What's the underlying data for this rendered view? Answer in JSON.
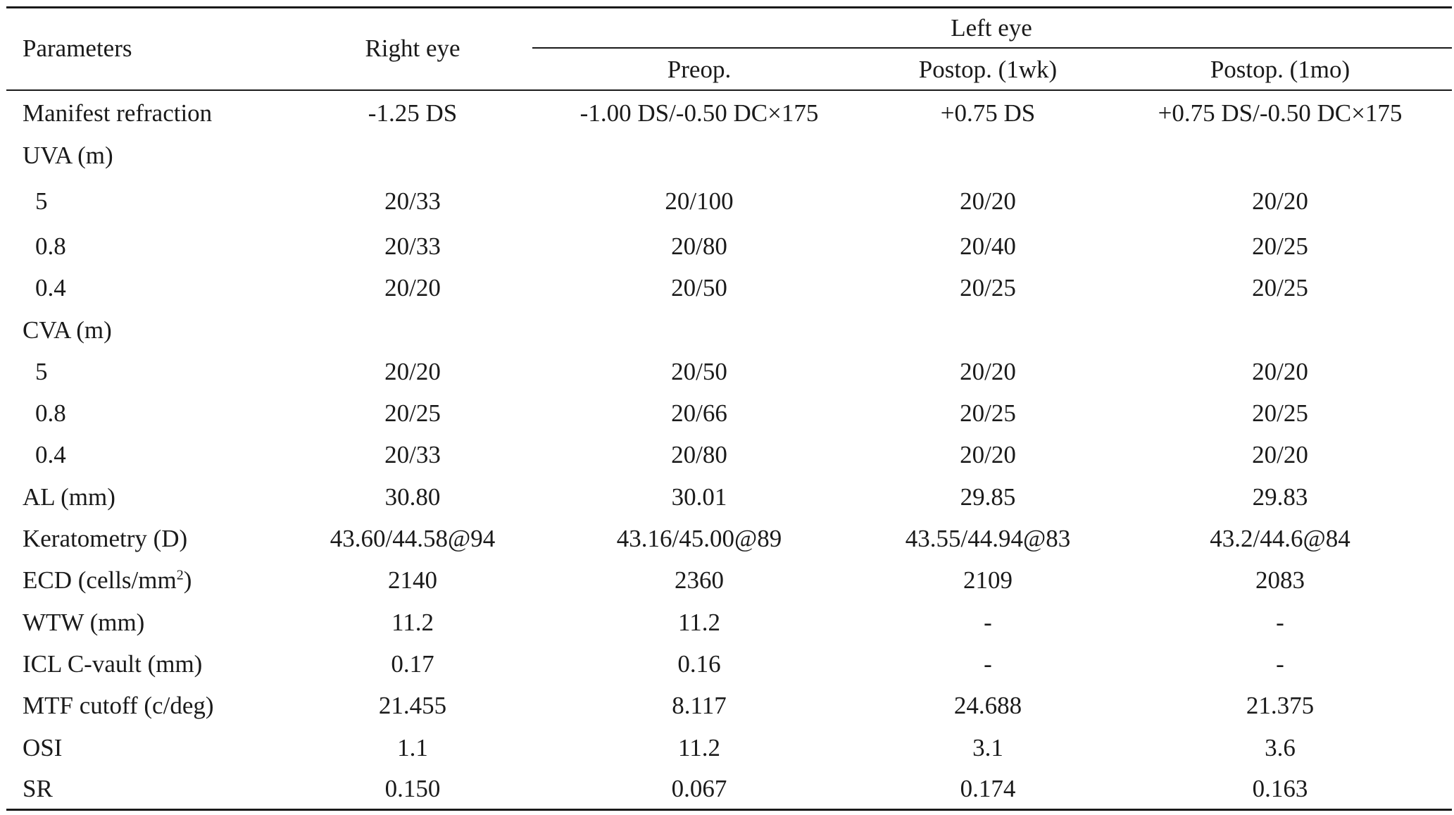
{
  "header": {
    "parameters": "Parameters",
    "right_eye": "Right eye",
    "left_eye": "Left eye",
    "preop": "Preop.",
    "postop_1wk": "Postop. (1wk)",
    "postop_1mo": "Postop. (1mo)"
  },
  "rows": [
    {
      "label": "Manifest refraction",
      "indent": false,
      "right": "-1.25 DS",
      "preop": "-1.00 DS/-0.50 DC×175",
      "wk1": "+0.75 DS",
      "mo1": "+0.75 DS/-0.50 DC×175"
    },
    {
      "label": "UVA (m)",
      "indent": false,
      "right": "",
      "preop": "",
      "wk1": "",
      "mo1": ""
    },
    {
      "label": "5",
      "indent": true,
      "right": "20/33",
      "preop": "20/100",
      "wk1": "20/20",
      "mo1": "20/20"
    },
    {
      "label": "0.8",
      "indent": true,
      "right": "20/33",
      "preop": "20/80",
      "wk1": "20/40",
      "mo1": "20/25"
    },
    {
      "label": "0.4",
      "indent": true,
      "right": "20/20",
      "preop": "20/50",
      "wk1": "20/25",
      "mo1": "20/25"
    },
    {
      "label": "CVA (m)",
      "indent": false,
      "right": "",
      "preop": "",
      "wk1": "",
      "mo1": ""
    },
    {
      "label": "5",
      "indent": true,
      "right": "20/20",
      "preop": "20/50",
      "wk1": "20/20",
      "mo1": "20/20"
    },
    {
      "label": "0.8",
      "indent": true,
      "right": "20/25",
      "preop": "20/66",
      "wk1": "20/25",
      "mo1": "20/25"
    },
    {
      "label": "0.4",
      "indent": true,
      "right": "20/33",
      "preop": "20/80",
      "wk1": "20/20",
      "mo1": "20/20"
    },
    {
      "label": "AL (mm)",
      "indent": false,
      "right": "30.80",
      "preop": "30.01",
      "wk1": "29.85",
      "mo1": "29.83"
    },
    {
      "label": "Keratometry (D)",
      "indent": false,
      "right": "43.60/44.58@94",
      "preop": "43.16/45.00@89",
      "wk1": "43.55/44.94@83",
      "mo1": "43.2/44.6@84"
    },
    {
      "label": "ECD (cells/mm",
      "label_sup": "2",
      "label_after": ")",
      "indent": false,
      "right": "2140",
      "preop": "2360",
      "wk1": "2109",
      "mo1": "2083"
    },
    {
      "label": "WTW (mm)",
      "indent": false,
      "right": "11.2",
      "preop": "11.2",
      "wk1": "-",
      "mo1": "-"
    },
    {
      "label": "ICL C-vault (mm)",
      "indent": false,
      "right": "0.17",
      "preop": "0.16",
      "wk1": "-",
      "mo1": "-"
    },
    {
      "label": "MTF cutoff (c/deg)",
      "indent": false,
      "right": "21.455",
      "preop": "8.117",
      "wk1": "24.688",
      "mo1": "21.375"
    },
    {
      "label": "OSI",
      "indent": false,
      "right": "1.1",
      "preop": "11.2",
      "wk1": "3.1",
      "mo1": "3.6"
    },
    {
      "label": "SR",
      "indent": false,
      "right": "0.150",
      "preop": "0.067",
      "wk1": "0.174",
      "mo1": "0.163"
    }
  ]
}
